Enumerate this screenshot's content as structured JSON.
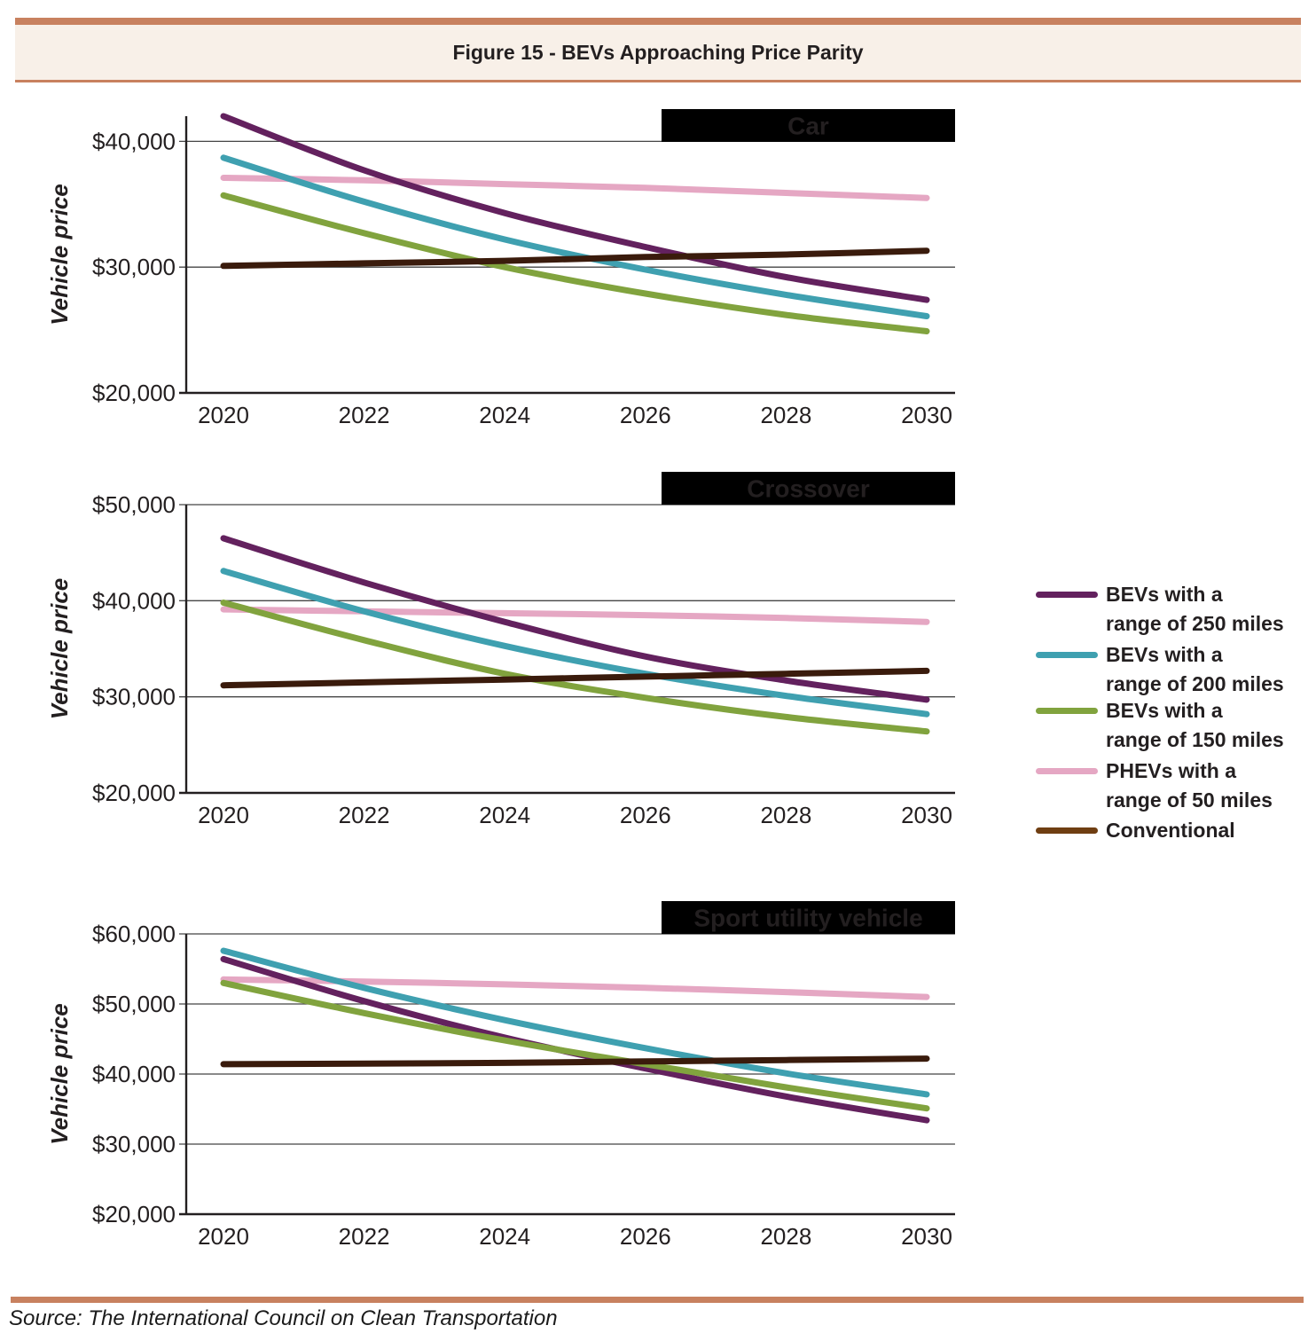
{
  "header": {
    "title": "Figure 15 - BEVs Approaching Price Parity"
  },
  "footer": {
    "source": "Source: The International Council on Clean Transportation"
  },
  "colors": {
    "accent_bar": "#C8815F",
    "header_bg": "#F8F0E8",
    "text": "#231F20",
    "category_box_bg": "#000000",
    "category_box_text": "#FFFFFF",
    "gridline": "#454545",
    "axis": "#231F20",
    "bev250": "#63215E",
    "bev200": "#3FA0B0",
    "bev150": "#81A33E",
    "phev50": "#E5A7C3",
    "conventional_line": "#3A1B0C",
    "conventional_legend": "#6F3E12"
  },
  "legend": {
    "items": [
      {
        "line1": "BEVs with a",
        "line2": "range of 250 miles",
        "color": "#63215E"
      },
      {
        "line1": "BEVs with a",
        "line2": "range of 200 miles",
        "color": "#3FA0B0"
      },
      {
        "line1": "BEVs with a",
        "line2": "range of 150 miles",
        "color": "#81A33E"
      },
      {
        "line1": "PHEVs with a",
        "line2": "range of 50 miles",
        "color": "#E5A7C3"
      },
      {
        "line1": "Conventional",
        "line2": "",
        "color": "#6F3E12"
      }
    ]
  },
  "chart_data": [
    {
      "type": "line",
      "title": "Car",
      "ylabel": "Vehicle price",
      "x": [
        2020,
        2022,
        2024,
        2026,
        2028,
        2030
      ],
      "x_tick_labels": [
        "2020",
        "2022",
        "2024",
        "2026",
        "2028",
        "2030"
      ],
      "y_ticks": [
        20000,
        30000,
        40000
      ],
      "y_tick_labels": [
        "$20,000",
        "$30,000",
        "$40,000"
      ],
      "ylim": [
        20000,
        42000
      ],
      "grid": "horizontal",
      "legend_position": "right-outside",
      "series": [
        {
          "name": "BEVs with a range of 250 miles",
          "color": "#63215E",
          "values": [
            42000,
            37700,
            34300,
            31600,
            29200,
            27400
          ]
        },
        {
          "name": "BEVs with a range of 200 miles",
          "color": "#3FA0B0",
          "values": [
            38700,
            35200,
            32200,
            29800,
            27800,
            26100
          ]
        },
        {
          "name": "BEVs with a range of 150 miles",
          "color": "#81A33E",
          "values": [
            35700,
            32700,
            30000,
            27900,
            26200,
            24900
          ]
        },
        {
          "name": "PHEVs with a range of 50 miles",
          "color": "#E5A7C3",
          "values": [
            37100,
            36900,
            36600,
            36300,
            35900,
            35500
          ]
        },
        {
          "name": "Conventional",
          "color": "#3A1B0C",
          "values": [
            30100,
            30300,
            30500,
            30800,
            31000,
            31300
          ]
        }
      ]
    },
    {
      "type": "line",
      "title": "Crossover",
      "ylabel": "Vehicle price",
      "x": [
        2020,
        2022,
        2024,
        2026,
        2028,
        2030
      ],
      "x_tick_labels": [
        "2020",
        "2022",
        "2024",
        "2026",
        "2028",
        "2030"
      ],
      "y_ticks": [
        20000,
        30000,
        40000,
        50000
      ],
      "y_tick_labels": [
        "$20,000",
        "$30,000",
        "$40,000",
        "$50,000"
      ],
      "ylim": [
        20000,
        50000
      ],
      "grid": "horizontal",
      "legend_position": "right-outside",
      "series": [
        {
          "name": "BEVs with a range of 250 miles",
          "color": "#63215E",
          "values": [
            46500,
            41900,
            37800,
            34200,
            31700,
            29700
          ]
        },
        {
          "name": "BEVs with a range of 200 miles",
          "color": "#3FA0B0",
          "values": [
            43100,
            38900,
            35300,
            32400,
            30100,
            28200
          ]
        },
        {
          "name": "BEVs with a range of 150 miles",
          "color": "#81A33E",
          "values": [
            39800,
            35900,
            32400,
            29900,
            27900,
            26400
          ]
        },
        {
          "name": "PHEVs with a range of 50 miles",
          "color": "#E5A7C3",
          "values": [
            39100,
            38900,
            38700,
            38500,
            38200,
            37800
          ]
        },
        {
          "name": "Conventional",
          "color": "#3A1B0C",
          "values": [
            31200,
            31500,
            31800,
            32100,
            32400,
            32700
          ]
        }
      ]
    },
    {
      "type": "line",
      "title": "Sport utility vehicle",
      "ylabel": "Vehicle price",
      "x": [
        2020,
        2022,
        2024,
        2026,
        2028,
        2030
      ],
      "x_tick_labels": [
        "2020",
        "2022",
        "2024",
        "2026",
        "2028",
        "2030"
      ],
      "y_ticks": [
        20000,
        30000,
        40000,
        50000,
        60000
      ],
      "y_tick_labels": [
        "$20,000",
        "$30,000",
        "$40,000",
        "$50,000",
        "$60,000"
      ],
      "ylim": [
        20000,
        60000
      ],
      "grid": "horizontal",
      "legend_position": "right-outside",
      "series": [
        {
          "name": "BEVs with a range of 250 miles",
          "color": "#63215E",
          "values": [
            56400,
            50400,
            45200,
            40800,
            36800,
            33400
          ]
        },
        {
          "name": "BEVs with a range of 200 miles",
          "color": "#3FA0B0",
          "values": [
            57600,
            52300,
            47700,
            43700,
            40100,
            37100
          ]
        },
        {
          "name": "BEVs with a range of 150 miles",
          "color": "#81A33E",
          "values": [
            53000,
            48700,
            44800,
            41400,
            38100,
            35100
          ]
        },
        {
          "name": "PHEVs with a range of 50 miles",
          "color": "#E5A7C3",
          "values": [
            53500,
            53200,
            52800,
            52300,
            51700,
            51000
          ]
        },
        {
          "name": "Conventional",
          "color": "#3A1B0C",
          "values": [
            41400,
            41500,
            41600,
            41800,
            42000,
            42200
          ]
        }
      ]
    }
  ]
}
